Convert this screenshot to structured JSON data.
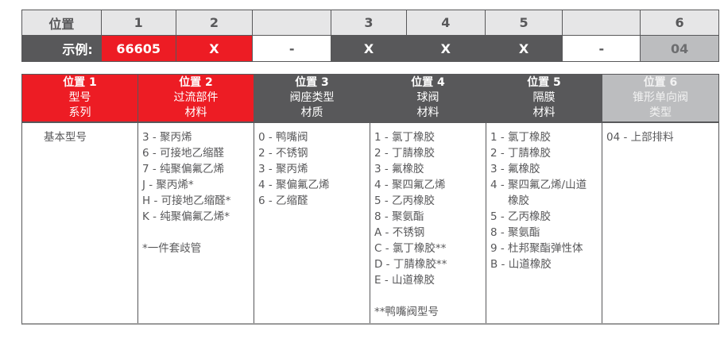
{
  "colors": {
    "red": "#ed1c24",
    "dark": "#58585a",
    "light_header": "#e6e6e7",
    "gray": "#bcbdbf"
  },
  "top_table": {
    "header": [
      "位置",
      "1",
      "2",
      "",
      "3",
      "4",
      "5",
      "",
      "6"
    ],
    "example": [
      "示例:",
      "66605",
      "X",
      "-",
      "X",
      "X",
      "X",
      "-",
      "04"
    ],
    "example_styles": [
      "dark",
      "red",
      "red",
      "white",
      "dark",
      "dark",
      "dark",
      "white",
      "gray"
    ]
  },
  "columns": [
    {
      "title": "位置 1",
      "sub": [
        "型号",
        "系列"
      ],
      "style": "red",
      "items": [
        "基本型号"
      ]
    },
    {
      "title": "位置 2",
      "sub": [
        "过流部件",
        "材料"
      ],
      "style": "red",
      "items": [
        "3 - 聚丙烯",
        "6 - 可接地乙缩醛",
        "7 - 纯聚偏氟乙烯",
        "J - 聚丙烯*",
        "H - 可接地乙缩醛*",
        "K - 纯聚偏氟乙烯*",
        "",
        "*一件套歧管"
      ]
    },
    {
      "title": "位置 3",
      "sub": [
        "阀座类型",
        "材质"
      ],
      "style": "dark",
      "items": [
        "0 - 鸭嘴阀",
        "2 - 不锈钢",
        "3 - 聚丙烯",
        "4 - 聚偏氟乙烯",
        "6 - 乙缩醛"
      ]
    },
    {
      "title": "位置 4",
      "sub": [
        "球阀",
        "材料"
      ],
      "style": "dark",
      "items": [
        "1 - 氯丁橡胶",
        "2 - 丁腈橡胶",
        "3 - 氟橡胶",
        "4 - 聚四氟乙烯",
        "5 - 乙丙橡胶",
        "8 - 聚氨酯",
        "A - 不锈钢",
        "C - 氯丁橡胶**",
        "D - 丁腈橡胶**",
        "E - 山道橡胶",
        "",
        "**鸭嘴阀型号"
      ]
    },
    {
      "title": "位置 5",
      "sub": [
        "隔膜",
        "材料"
      ],
      "style": "dark",
      "items": [
        "1 - 氯丁橡胶",
        "2 - 丁腈橡胶",
        "3 - 氟橡胶",
        "4 - 聚四氟乙烯/山道",
        "橡胶",
        "5 - 乙丙橡胶",
        "8 - 聚氨酯",
        "9 - 杜邦聚酯弹性体",
        "B - 山道橡胶"
      ]
    },
    {
      "title": "位置 6",
      "sub": [
        "锥形单向阀",
        "类型"
      ],
      "style": "gray",
      "items": [
        "04 - 上部排料"
      ]
    }
  ]
}
